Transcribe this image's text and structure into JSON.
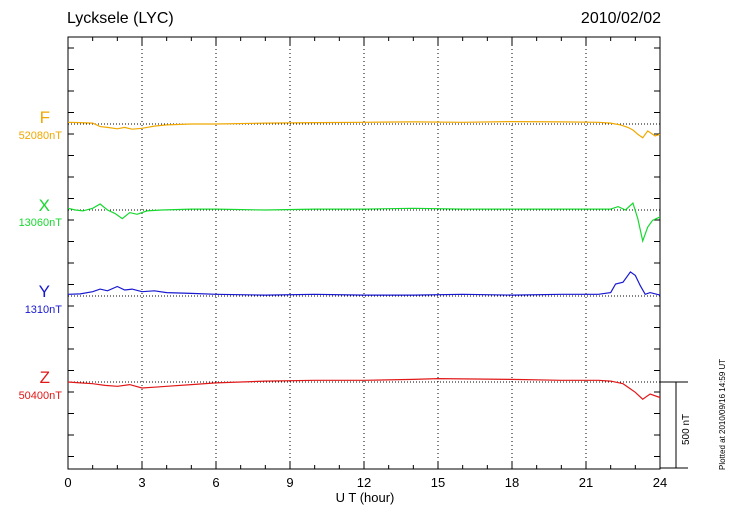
{
  "header": {
    "station": "Lycksele (LYC)",
    "date": "2010/02/02"
  },
  "plotted_note": "Plotted at 2010/09/16 14:59 UT",
  "scale_label": "500 nT",
  "colors": {
    "F": "#f0a800",
    "X": "#18d830",
    "Y": "#1818d0",
    "Z": "#e01818",
    "axis": "#000000",
    "grid": "#000000"
  },
  "chart_data": {
    "type": "line",
    "xlabel": "U T (hour)",
    "xlim": [
      0,
      24
    ],
    "x_ticks": [
      0,
      3,
      6,
      9,
      12,
      15,
      18,
      21,
      24
    ],
    "x_tick_labels": [
      "0",
      "3",
      "6",
      "9",
      "12",
      "15",
      "18",
      "21",
      "24"
    ],
    "y_unit": "nT",
    "scale_bar_nT": 500,
    "grid": "dotted vertical at 3h, dotted baseline per component",
    "series": [
      {
        "name": "F",
        "baseline_label": "52080nT",
        "color": "#f0a800",
        "x": [
          0,
          0.5,
          1,
          1.3,
          1.6,
          2,
          2.3,
          2.6,
          3,
          3.5,
          4,
          5,
          6,
          8,
          10,
          12,
          14,
          16,
          18,
          20,
          21.5,
          22,
          22.4,
          22.7,
          22.9,
          23.1,
          23.3,
          23.5,
          23.8,
          24
        ],
        "y": [
          10,
          8,
          5,
          -15,
          -20,
          -28,
          -20,
          -30,
          -25,
          -12,
          -5,
          0,
          0,
          5,
          8,
          10,
          12,
          10,
          14,
          12,
          10,
          5,
          -5,
          -20,
          -35,
          -60,
          -80,
          -40,
          -70,
          -60
        ]
      },
      {
        "name": "X",
        "baseline_label": "13060nT",
        "color": "#18d830",
        "x": [
          0,
          0.3,
          0.6,
          1,
          1.3,
          1.6,
          1.9,
          2.2,
          2.5,
          2.8,
          3.2,
          3.8,
          5,
          6,
          8,
          10,
          12,
          14,
          16,
          18,
          20,
          21.5,
          22,
          22.3,
          22.6,
          22.9,
          23.1,
          23.3,
          23.5,
          23.7,
          24
        ],
        "y": [
          10,
          0,
          -5,
          10,
          35,
          0,
          -20,
          -50,
          -15,
          -25,
          -5,
          0,
          5,
          5,
          0,
          5,
          5,
          10,
          5,
          5,
          5,
          5,
          5,
          20,
          0,
          40,
          -50,
          -180,
          -100,
          -60,
          -40
        ]
      },
      {
        "name": "Y",
        "baseline_label": "1310nT",
        "color": "#1818d0",
        "x": [
          0,
          0.5,
          1,
          1.3,
          1.6,
          2,
          2.3,
          2.6,
          3,
          3.5,
          4,
          5,
          6,
          8,
          10,
          12,
          14,
          16,
          18,
          20,
          21.5,
          22,
          22.2,
          22.5,
          22.8,
          23,
          23.2,
          23.4,
          23.6,
          24
        ],
        "y": [
          10,
          12,
          25,
          40,
          30,
          55,
          35,
          40,
          25,
          30,
          20,
          15,
          10,
          5,
          10,
          5,
          5,
          10,
          5,
          10,
          10,
          20,
          70,
          80,
          140,
          120,
          60,
          10,
          20,
          5
        ]
      },
      {
        "name": "Z",
        "baseline_label": "50400nT",
        "color": "#e01818",
        "x": [
          0,
          0.5,
          1,
          1.5,
          2,
          2.5,
          3,
          3.5,
          4,
          5,
          6,
          8,
          10,
          12,
          14,
          15,
          16,
          18,
          20,
          21,
          21.5,
          22,
          22.5,
          22.8,
          23,
          23.3,
          23.6,
          24
        ],
        "y": [
          0,
          -5,
          -10,
          -20,
          -25,
          -15,
          -35,
          -30,
          -25,
          -15,
          -5,
          5,
          10,
          10,
          15,
          20,
          18,
          15,
          10,
          10,
          10,
          5,
          -10,
          -40,
          -60,
          -100,
          -70,
          -90
        ]
      }
    ]
  }
}
